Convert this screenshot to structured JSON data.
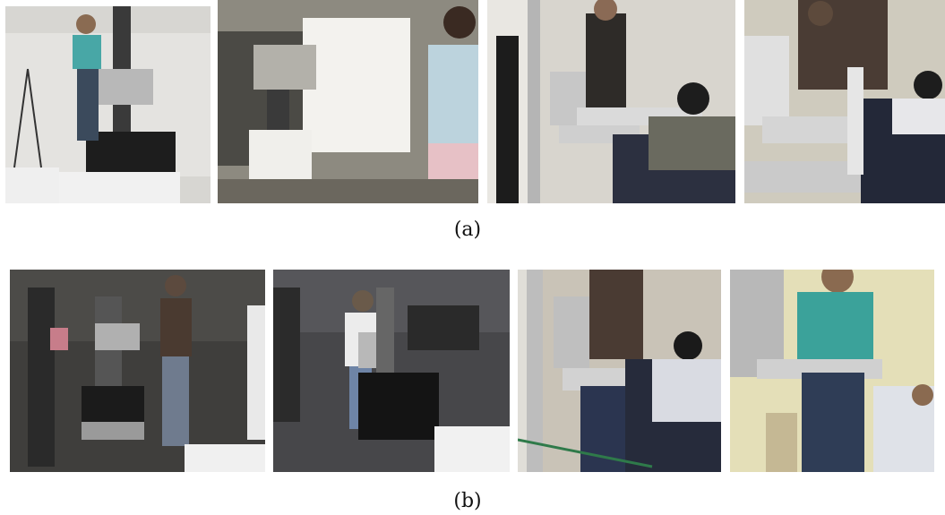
{
  "figure": {
    "row_a": {
      "caption": "(a)",
      "photos": [
        {
          "scene": "woman-with-robot-lab-white-backdrop"
        },
        {
          "scene": "robot-with-white-box-and-nurse"
        },
        {
          "scene": "robot-at-bed-with-mannequin"
        },
        {
          "scene": "woman-leaning-over-bed-robot"
        }
      ]
    },
    "row_b": {
      "caption": "(b)",
      "photos": [
        {
          "scene": "woman-walking-robot-in-office"
        },
        {
          "scene": "woman-guiding-robot-in-office"
        },
        {
          "scene": "robot-arm-near-patient-bed"
        },
        {
          "scene": "woman-teal-shirt-with-robot-arm"
        }
      ]
    }
  }
}
